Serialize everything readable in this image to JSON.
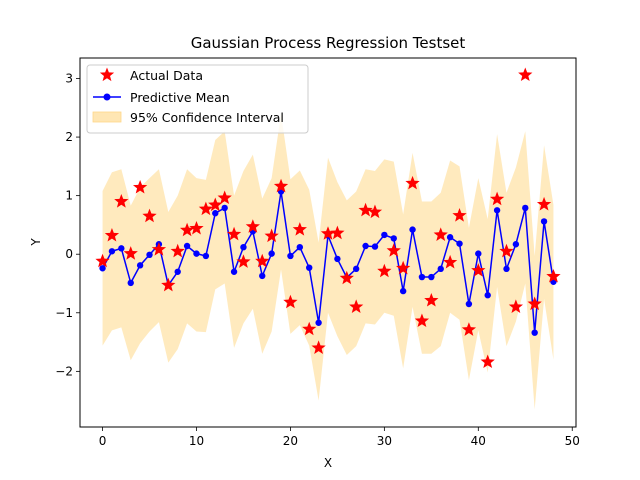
{
  "chart_data": {
    "type": "line",
    "title": "Gaussian Process Regression Testset",
    "xlabel": "X",
    "ylabel": "Y",
    "xlim": [
      -2.4,
      50.4
    ],
    "ylim": [
      -2.95,
      3.35
    ],
    "xticks": [
      0,
      10,
      20,
      30,
      40,
      50
    ],
    "yticks": [
      -2,
      -1,
      0,
      1,
      2,
      3
    ],
    "grid": false,
    "legend_position": "top-left",
    "colors": {
      "actual": "#ff0000",
      "mean": "#0000ff",
      "interval": "#ffe6b3"
    },
    "x": [
      0,
      1,
      2,
      3,
      4,
      5,
      6,
      7,
      8,
      9,
      10,
      11,
      12,
      13,
      14,
      15,
      16,
      17,
      18,
      19,
      20,
      21,
      22,
      23,
      24,
      25,
      26,
      27,
      28,
      29,
      30,
      31,
      32,
      33,
      34,
      35,
      36,
      37,
      38,
      39,
      40,
      41,
      42,
      43,
      44,
      45,
      46,
      47,
      48
    ],
    "series": [
      {
        "name": "Actual Data",
        "kind": "scatter",
        "marker": "star",
        "values": [
          -0.12,
          0.32,
          0.9,
          0.01,
          1.14,
          0.65,
          0.08,
          -0.53,
          0.05,
          0.41,
          0.44,
          0.77,
          0.84,
          0.96,
          0.34,
          -0.13,
          0.47,
          -0.12,
          0.31,
          1.16,
          -0.82,
          0.42,
          -1.28,
          -1.6,
          0.35,
          0.36,
          -0.41,
          -0.9,
          0.75,
          0.72,
          -0.29,
          0.06,
          -0.24,
          1.21,
          -1.14,
          -0.79,
          0.33,
          -0.14,
          0.66,
          -1.29,
          -0.28,
          -1.84,
          0.94,
          0.05,
          -0.9,
          3.06,
          -0.85,
          0.85,
          -0.38
        ]
      },
      {
        "name": "Predictive Mean",
        "kind": "line",
        "marker": "circle",
        "values": [
          -0.24,
          0.05,
          0.1,
          -0.49,
          -0.19,
          -0.01,
          0.17,
          -0.53,
          -0.3,
          0.14,
          0.01,
          -0.03,
          0.7,
          0.79,
          -0.3,
          0.12,
          0.39,
          -0.37,
          0.01,
          1.07,
          -0.03,
          0.12,
          -0.23,
          -1.17,
          0.32,
          -0.08,
          -0.4,
          -0.25,
          0.14,
          0.13,
          0.33,
          0.27,
          -0.63,
          0.42,
          -0.39,
          -0.39,
          -0.25,
          0.29,
          0.18,
          -0.85,
          0.01,
          -0.7,
          0.75,
          -0.25,
          0.17,
          0.79,
          -1.34,
          0.56,
          -0.47
        ]
      }
    ],
    "interval": {
      "name": "95% Confidence Interval",
      "upper": [
        1.08,
        1.4,
        1.45,
        0.83,
        1.14,
        1.3,
        1.45,
        0.72,
        1.0,
        1.45,
        1.3,
        1.27,
        1.95,
        2.1,
        1.0,
        1.42,
        1.7,
        0.95,
        1.3,
        2.4,
        1.28,
        1.43,
        1.1,
        0.2,
        1.65,
        1.23,
        0.92,
        1.07,
        1.45,
        1.42,
        1.62,
        1.58,
        0.68,
        1.73,
        0.9,
        0.9,
        1.05,
        1.6,
        1.5,
        0.45,
        1.3,
        0.6,
        2.05,
        1.05,
        1.48,
        2.1,
        -0.03,
        1.86,
        0.84
      ],
      "lower": [
        -1.56,
        -1.3,
        -1.25,
        -1.81,
        -1.52,
        -1.32,
        -1.16,
        -1.85,
        -1.62,
        -1.18,
        -1.32,
        -1.33,
        -0.6,
        -0.5,
        -1.6,
        -1.18,
        -0.93,
        -1.7,
        -1.32,
        -0.26,
        -1.36,
        -1.21,
        -1.56,
        -2.5,
        -1.0,
        -1.4,
        -1.72,
        -1.57,
        -1.18,
        -1.2,
        -1.0,
        -1.05,
        -1.95,
        -0.9,
        -1.7,
        -1.7,
        -1.57,
        -1.0,
        -1.12,
        -2.15,
        -1.3,
        -2.02,
        -0.56,
        -1.57,
        -1.15,
        -0.5,
        -2.65,
        -0.76,
        -1.8
      ]
    }
  }
}
